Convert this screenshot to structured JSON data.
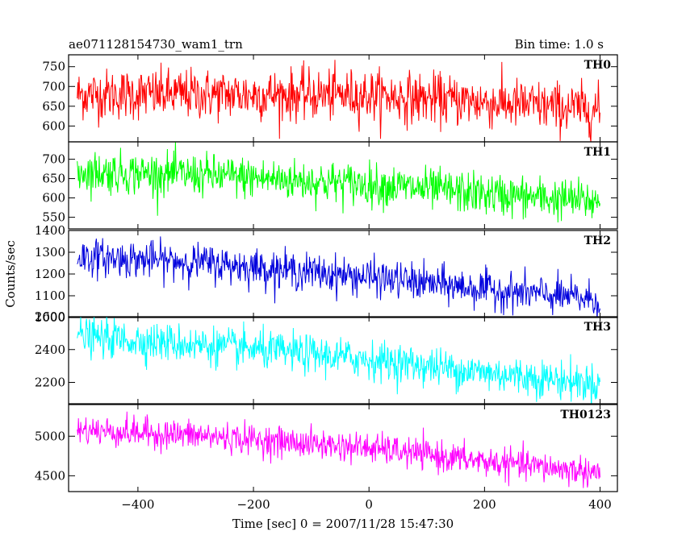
{
  "header": {
    "left_title": "ae071128154730_wam1_trn",
    "right_title": "Bin time: 1.0 s"
  },
  "chart_data": {
    "type": "line",
    "title": "ae071128154730_wam1_trn",
    "subtitle": "Bin time: 1.0 s",
    "xlabel": "Time [sec] 0 = 2007/11/28 15:47:30",
    "ylabel": "Counts/sec",
    "xlim": [
      -520,
      430
    ],
    "x_range": [
      -505,
      400
    ],
    "x_ticks": [
      -400,
      -200,
      0,
      200,
      400
    ],
    "x_tick_labels": [
      "−400",
      "−200",
      "0",
      "200",
      "400"
    ],
    "grid": false,
    "legend": "none",
    "panels": [
      {
        "name": "TH0",
        "color": "#ff0000",
        "ylim": [
          560,
          780
        ],
        "y_ticks": [
          600,
          650,
          700,
          750
        ],
        "y_tick_labels": [
          "600",
          "650",
          "700",
          "750"
        ],
        "trend": {
          "x": [
            -505,
            -300,
            0,
            180,
            400
          ],
          "y": [
            680,
            680,
            678,
            662,
            640
          ]
        },
        "noise_sd": 32
      },
      {
        "name": "TH1",
        "color": "#00ff00",
        "ylim": [
          520,
          745
        ],
        "y_ticks": [
          550,
          600,
          650,
          700
        ],
        "y_tick_labels": [
          "550",
          "600",
          "650",
          "700"
        ],
        "trend": {
          "x": [
            -505,
            -300,
            0,
            200,
            400
          ],
          "y": [
            668,
            660,
            635,
            610,
            590
          ]
        },
        "noise_sd": 27
      },
      {
        "name": "TH2",
        "color": "#0000dd",
        "ylim": [
          1000,
          1400
        ],
        "y_ticks": [
          1000,
          1100,
          1200,
          1300,
          1400
        ],
        "y_tick_labels": [
          "1000",
          "1100",
          "1200",
          "1300",
          "1400"
        ],
        "trend": {
          "x": [
            -505,
            -300,
            0,
            200,
            400
          ],
          "y": [
            1280,
            1255,
            1185,
            1130,
            1080
          ]
        },
        "noise_sd": 42
      },
      {
        "name": "TH3",
        "color": "#00ffff",
        "ylim": [
          2070,
          2600
        ],
        "y_ticks": [
          2200,
          2400,
          2600
        ],
        "y_tick_labels": [
          "2200",
          "2400",
          "2600"
        ],
        "trend": {
          "x": [
            -505,
            -300,
            0,
            200,
            400
          ],
          "y": [
            2480,
            2430,
            2340,
            2260,
            2190
          ]
        },
        "noise_sd": 58
      },
      {
        "name": "TH0123",
        "color": "#ff00ff",
        "ylim": [
          4300,
          5400
        ],
        "y_ticks": [
          4500,
          5000
        ],
        "y_tick_labels": [
          "4500",
          "5000"
        ],
        "trend": {
          "x": [
            -505,
            -300,
            0,
            200,
            400
          ],
          "y": [
            5080,
            5010,
            4850,
            4680,
            4540
          ]
        },
        "noise_sd": 95
      }
    ]
  }
}
